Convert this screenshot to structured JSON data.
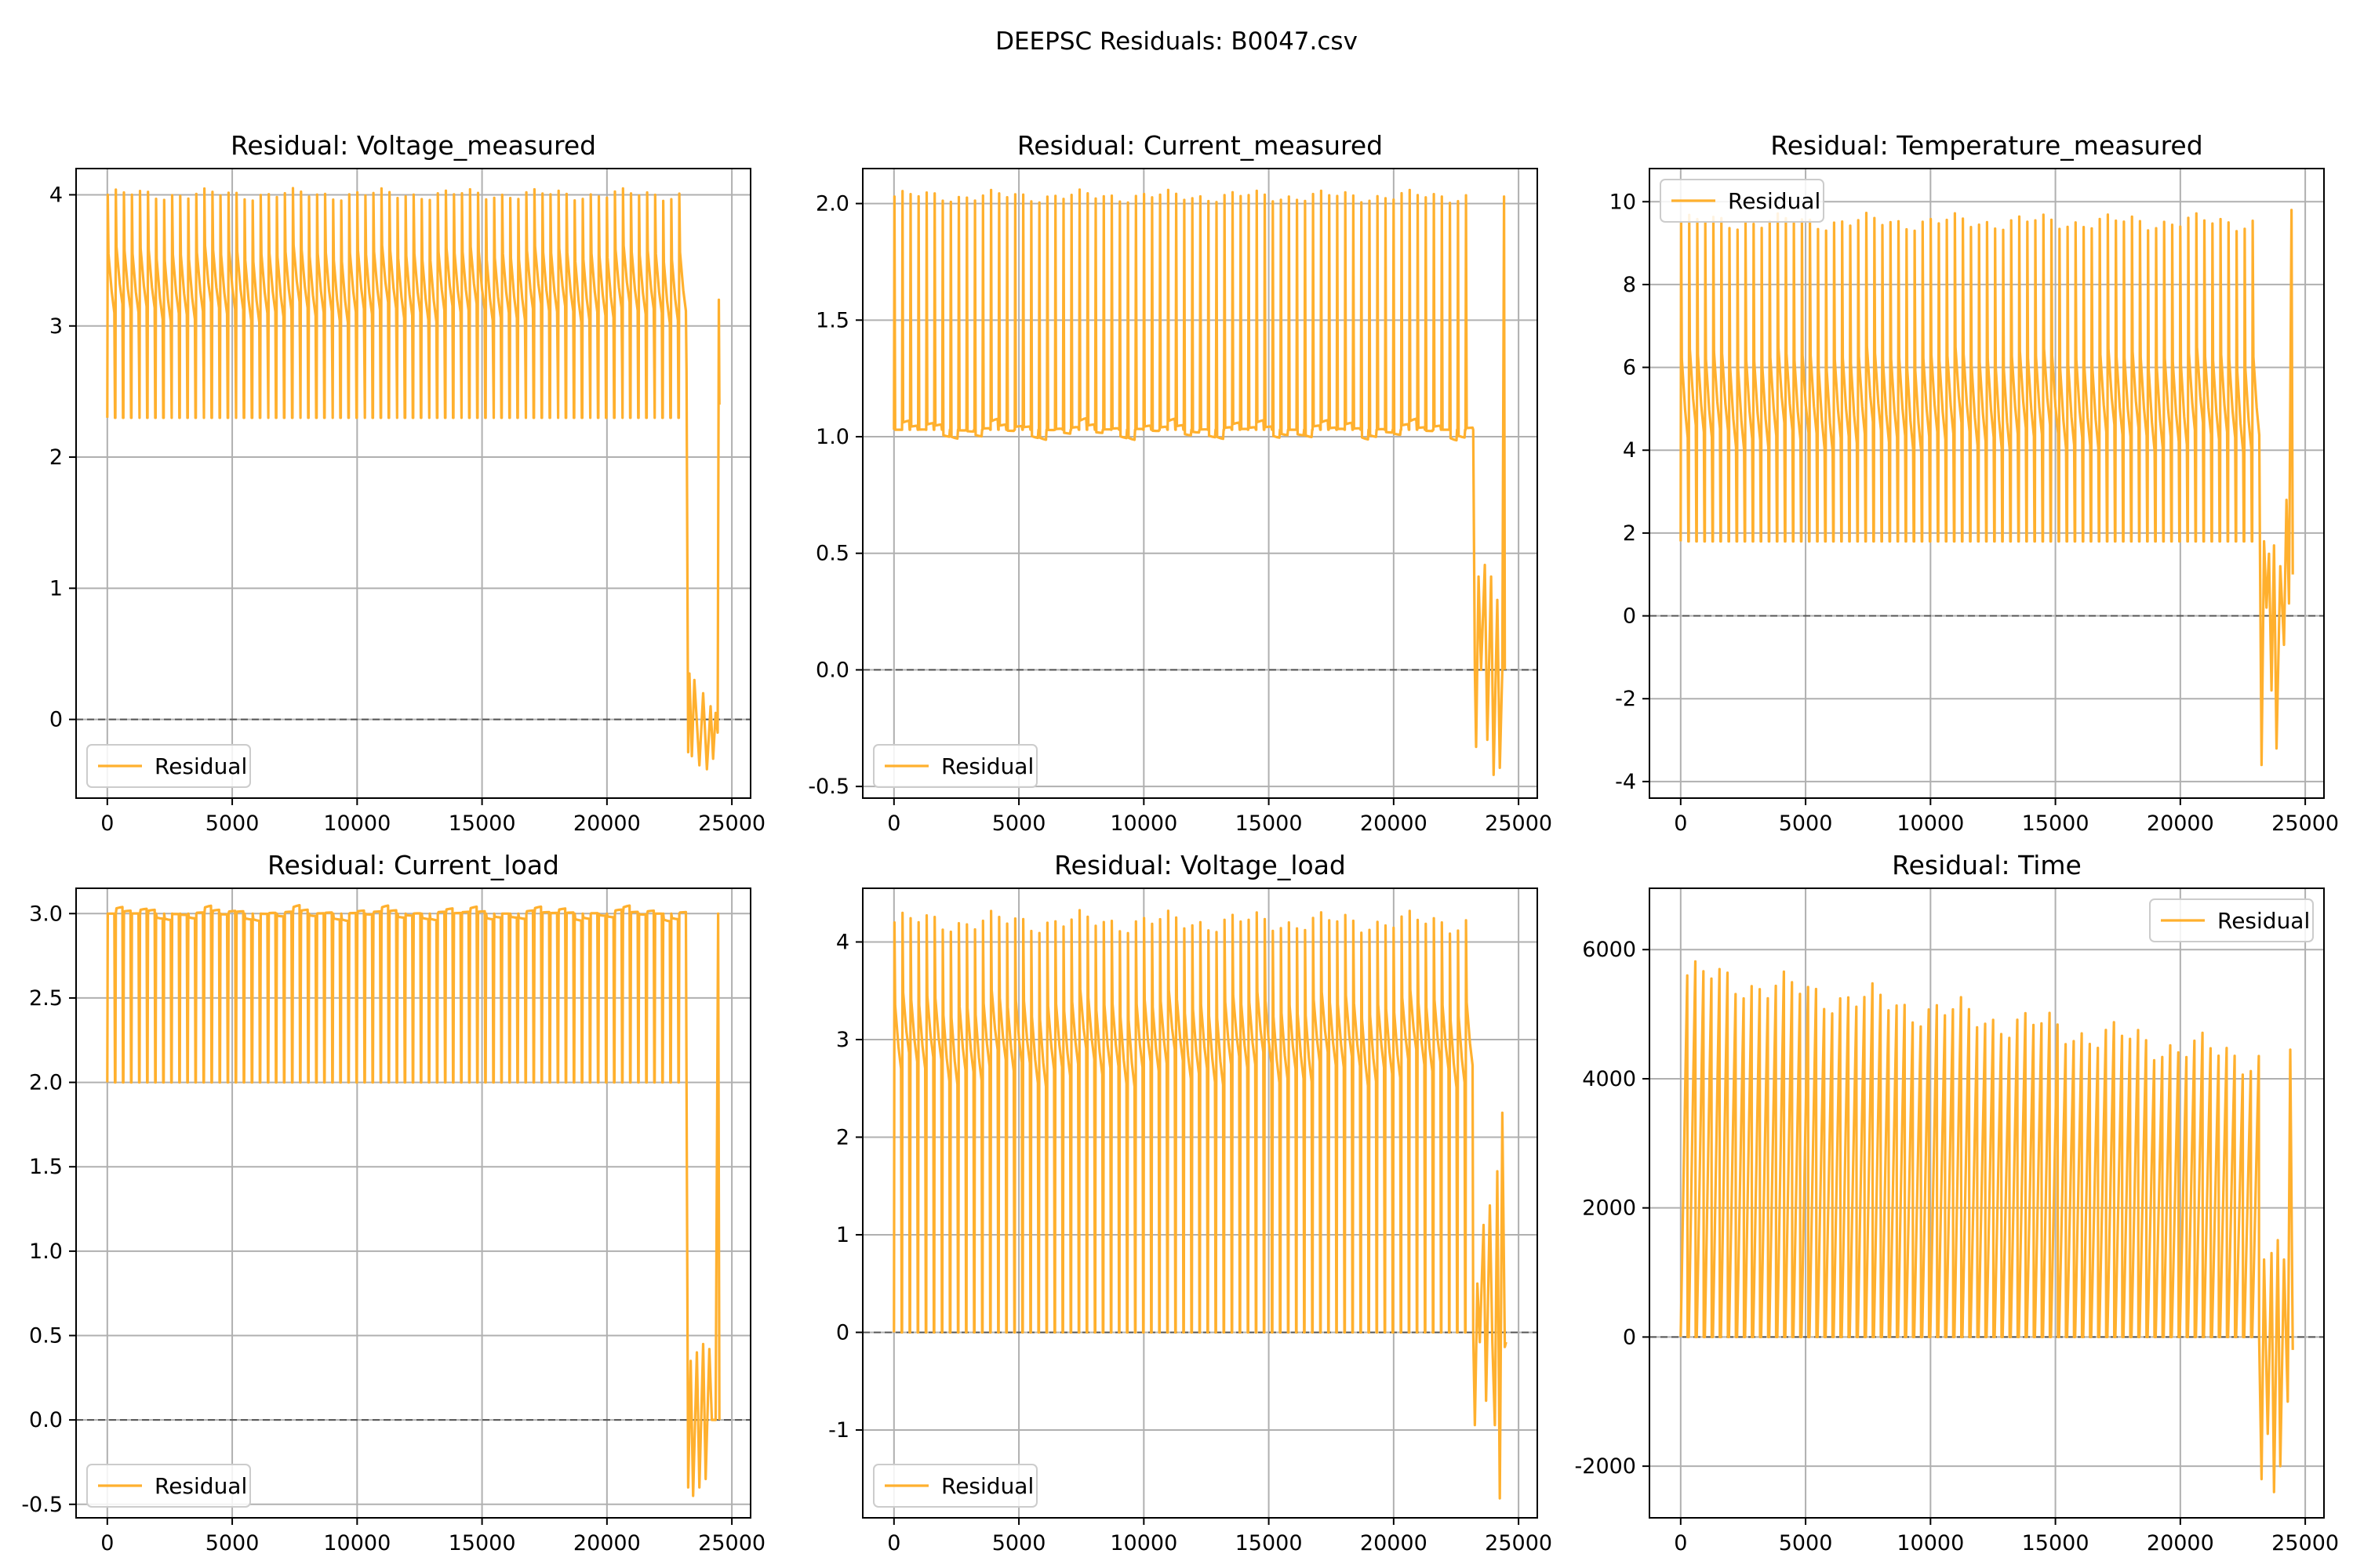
{
  "figure": {
    "suptitle": "DEEPSC Residuals: B0047.csv",
    "line_color": "#FFB02E",
    "grid_color": "#b0b0b0",
    "zero_line_color": "#555555"
  },
  "chart_data": [
    {
      "type": "line",
      "title": "Residual: Voltage_measured",
      "legend_position": "lower-left",
      "grid": true,
      "series": [
        {
          "name": "Residual"
        }
      ],
      "xlim": [
        -1250,
        25750
      ],
      "ylim": [
        -0.6,
        4.2
      ],
      "xticks": [
        0,
        5000,
        10000,
        15000,
        20000,
        25000
      ],
      "xtick_labels": [
        "0",
        "5000",
        "10000",
        "15000",
        "20000",
        "25000"
      ],
      "yticks": [
        0,
        1,
        2,
        3,
        4
      ],
      "ytick_labels": [
        "0",
        "1",
        "2",
        "3",
        "4"
      ],
      "zero_line": 0,
      "pattern": {
        "x_start": 0,
        "x_end": 23200,
        "cycles": 72,
        "peak": 4.0,
        "trough": 2.3,
        "plateau_start": 3.55,
        "plateau_end": 3.1,
        "skip_trough_every": 4,
        "tail": [
          [
            23250,
            -0.25
          ],
          [
            23300,
            0.35
          ],
          [
            23400,
            -0.28
          ],
          [
            23500,
            0.3
          ],
          [
            23700,
            -0.35
          ],
          [
            23850,
            0.2
          ],
          [
            24000,
            -0.38
          ],
          [
            24150,
            0.1
          ],
          [
            24250,
            -0.3
          ],
          [
            24350,
            0.05
          ],
          [
            24430,
            -0.1
          ],
          [
            24480,
            3.2
          ],
          [
            24500,
            2.4
          ]
        ]
      }
    },
    {
      "type": "line",
      "title": "Residual: Current_measured",
      "legend_position": "lower-left",
      "grid": true,
      "series": [
        {
          "name": "Residual"
        }
      ],
      "xlim": [
        -1250,
        25750
      ],
      "ylim": [
        -0.55,
        2.15
      ],
      "xticks": [
        0,
        5000,
        10000,
        15000,
        20000,
        25000
      ],
      "xtick_labels": [
        "0",
        "5000",
        "10000",
        "15000",
        "20000",
        "25000"
      ],
      "yticks": [
        -0.5,
        0.0,
        0.5,
        1.0,
        1.5,
        2.0
      ],
      "ytick_labels": [
        "-0.5",
        "0.0",
        "0.5",
        "1.0",
        "1.5",
        "2.0"
      ],
      "zero_line": 0,
      "pattern": {
        "x_start": 0,
        "x_end": 23200,
        "cycles": 72,
        "peak": 2.03,
        "trough": 1.03,
        "plateau_start": 1.03,
        "plateau_end": 1.03,
        "skip_trough_every": 0,
        "tail": [
          [
            23250,
            0.0
          ],
          [
            23300,
            -0.33
          ],
          [
            23400,
            0.4
          ],
          [
            23500,
            0.0
          ],
          [
            23650,
            0.45
          ],
          [
            23750,
            -0.3
          ],
          [
            23900,
            0.4
          ],
          [
            24000,
            -0.45
          ],
          [
            24150,
            0.3
          ],
          [
            24250,
            -0.42
          ],
          [
            24350,
            0.0
          ],
          [
            24420,
            2.03
          ],
          [
            24450,
            0.0
          ]
        ]
      }
    },
    {
      "type": "line",
      "title": "Residual: Temperature_measured",
      "legend_position": "upper-left",
      "grid": true,
      "series": [
        {
          "name": "Residual"
        }
      ],
      "xlim": [
        -1250,
        25750
      ],
      "ylim": [
        -4.4,
        10.8
      ],
      "xticks": [
        0,
        5000,
        10000,
        15000,
        20000,
        25000
      ],
      "xtick_labels": [
        "0",
        "5000",
        "10000",
        "15000",
        "20000",
        "25000"
      ],
      "yticks": [
        -4,
        -2,
        0,
        2,
        4,
        6,
        8,
        10
      ],
      "ytick_labels": [
        "-4",
        "-2",
        "0",
        "2",
        "4",
        "6",
        "8",
        "10"
      ],
      "zero_line": 0,
      "pattern": {
        "x_start": 0,
        "x_end": 23200,
        "cycles": 72,
        "peak": 9.5,
        "trough": 1.8,
        "plateau_start": 6.2,
        "plateau_end": 4.3,
        "skip_trough_every": 0,
        "tail": [
          [
            23250,
            -3.6
          ],
          [
            23350,
            1.8
          ],
          [
            23450,
            0.2
          ],
          [
            23550,
            1.5
          ],
          [
            23650,
            -1.8
          ],
          [
            23750,
            1.7
          ],
          [
            23850,
            -3.2
          ],
          [
            24000,
            1.2
          ],
          [
            24150,
            -0.7
          ],
          [
            24250,
            2.8
          ],
          [
            24350,
            0.3
          ],
          [
            24450,
            9.8
          ],
          [
            24500,
            1.0
          ]
        ]
      }
    },
    {
      "type": "line",
      "title": "Residual: Current_load",
      "legend_position": "lower-left",
      "grid": true,
      "series": [
        {
          "name": "Residual"
        }
      ],
      "xlim": [
        -1250,
        25750
      ],
      "ylim": [
        -0.58,
        3.15
      ],
      "xticks": [
        0,
        5000,
        10000,
        15000,
        20000,
        25000
      ],
      "xtick_labels": [
        "0",
        "5000",
        "10000",
        "15000",
        "20000",
        "25000"
      ],
      "yticks": [
        -0.5,
        0.0,
        0.5,
        1.0,
        1.5,
        2.0,
        2.5,
        3.0
      ],
      "ytick_labels": [
        "-0.5",
        "0.0",
        "0.5",
        "1.0",
        "1.5",
        "2.0",
        "2.5",
        "3.0"
      ],
      "zero_line": 0,
      "pattern": {
        "x_start": 0,
        "x_end": 23200,
        "cycles": 72,
        "peak": 3.0,
        "trough": 2.0,
        "plateau_start": 3.0,
        "plateau_end": 3.0,
        "skip_trough_every": 0,
        "tail": [
          [
            23250,
            -0.4
          ],
          [
            23350,
            0.35
          ],
          [
            23450,
            -0.45
          ],
          [
            23600,
            0.4
          ],
          [
            23700,
            -0.4
          ],
          [
            23850,
            0.45
          ],
          [
            23950,
            -0.35
          ],
          [
            24100,
            0.42
          ],
          [
            24200,
            0.0
          ],
          [
            24350,
            0.0
          ],
          [
            24450,
            3.0
          ],
          [
            24500,
            0.0
          ]
        ]
      }
    },
    {
      "type": "line",
      "title": "Residual: Voltage_load",
      "legend_position": "lower-left",
      "grid": true,
      "series": [
        {
          "name": "Residual"
        }
      ],
      "xlim": [
        -1250,
        25750
      ],
      "ylim": [
        -1.9,
        4.55
      ],
      "xticks": [
        0,
        5000,
        10000,
        15000,
        20000,
        25000
      ],
      "xtick_labels": [
        "0",
        "5000",
        "10000",
        "15000",
        "20000",
        "25000"
      ],
      "yticks": [
        -1,
        0,
        1,
        2,
        3,
        4
      ],
      "ytick_labels": [
        "-1",
        "0",
        "1",
        "2",
        "3",
        "4"
      ],
      "zero_line": 0,
      "pattern": {
        "x_start": 0,
        "x_end": 23200,
        "cycles": 72,
        "peak": 4.2,
        "trough": 0.0,
        "plateau_start": 3.35,
        "plateau_end": 2.7,
        "skip_trough_every": 0,
        "tail": [
          [
            23250,
            -0.95
          ],
          [
            23350,
            0.5
          ],
          [
            23450,
            -0.1
          ],
          [
            23600,
            1.1
          ],
          [
            23700,
            -0.7
          ],
          [
            23850,
            1.3
          ],
          [
            23950,
            -0.1
          ],
          [
            24050,
            -0.95
          ],
          [
            24150,
            1.65
          ],
          [
            24250,
            -1.7
          ],
          [
            24350,
            2.25
          ],
          [
            24450,
            -0.15
          ],
          [
            24500,
            -0.1
          ]
        ]
      }
    },
    {
      "type": "line",
      "title": "Residual: Time",
      "legend_position": "upper-right",
      "grid": true,
      "series": [
        {
          "name": "Residual"
        }
      ],
      "xlim": [
        -1250,
        25750
      ],
      "ylim": [
        -2800,
        6950
      ],
      "xticks": [
        0,
        5000,
        10000,
        15000,
        20000,
        25000
      ],
      "xtick_labels": [
        "0",
        "5000",
        "10000",
        "15000",
        "20000",
        "25000"
      ],
      "yticks": [
        -2000,
        0,
        2000,
        4000,
        6000
      ],
      "ytick_labels": [
        "-2000",
        "0",
        "2000",
        "4000",
        "6000"
      ],
      "zero_line": 0,
      "pattern": {
        "x_start": 0,
        "x_end": 23200,
        "cycles": 72,
        "peak": 5600,
        "peak_end": 4300,
        "trough": 0,
        "sawtooth": true,
        "skip_trough_every": 0,
        "tail": [
          [
            23250,
            -2200
          ],
          [
            23350,
            1200
          ],
          [
            23500,
            -1500
          ],
          [
            23650,
            1300
          ],
          [
            23750,
            -2400
          ],
          [
            23900,
            1500
          ],
          [
            24000,
            -2000
          ],
          [
            24150,
            1200
          ],
          [
            24300,
            -1000
          ],
          [
            24400,
            4450
          ],
          [
            24500,
            -200
          ]
        ]
      }
    }
  ]
}
